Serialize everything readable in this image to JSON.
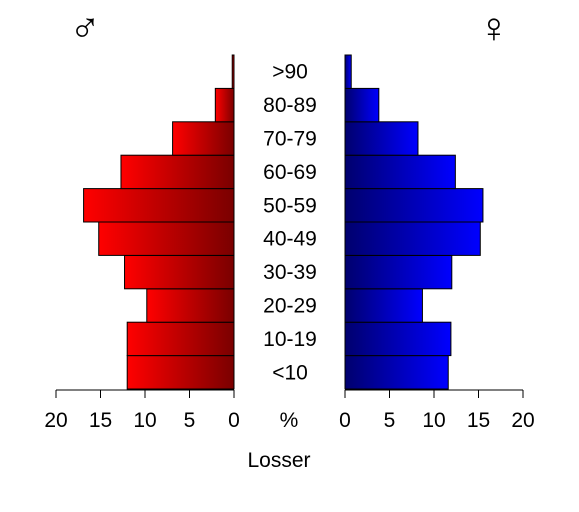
{
  "chart_data": {
    "type": "bar",
    "orientation": "horizontal",
    "layout": "population-pyramid",
    "categories": [
      "<10",
      "10-19",
      "20-29",
      "30-39",
      "40-49",
      "50-59",
      "60-69",
      "70-79",
      "80-89",
      ">90"
    ],
    "series": [
      {
        "name": "♂",
        "side": "left",
        "values": [
          12.0,
          12.0,
          9.8,
          12.3,
          15.2,
          16.9,
          12.7,
          6.9,
          2.1,
          0.2
        ],
        "gradient_colors": [
          "#ff0000",
          "#7a0000"
        ]
      },
      {
        "name": "♀",
        "side": "right",
        "values": [
          11.6,
          11.9,
          8.7,
          12.0,
          15.2,
          15.5,
          12.4,
          8.2,
          3.8,
          0.7
        ],
        "gradient_colors": [
          "#00006e",
          "#0000ff"
        ]
      }
    ],
    "xlim": [
      0,
      20
    ],
    "xticks": [
      "20",
      "15",
      "10",
      "5",
      "0"
    ],
    "xticks_right": [
      "0",
      "5",
      "10",
      "15",
      "20"
    ],
    "center_axis_label": "%",
    "xlabel": "Losser",
    "grid": false,
    "bar_edge_color": "#000000"
  }
}
